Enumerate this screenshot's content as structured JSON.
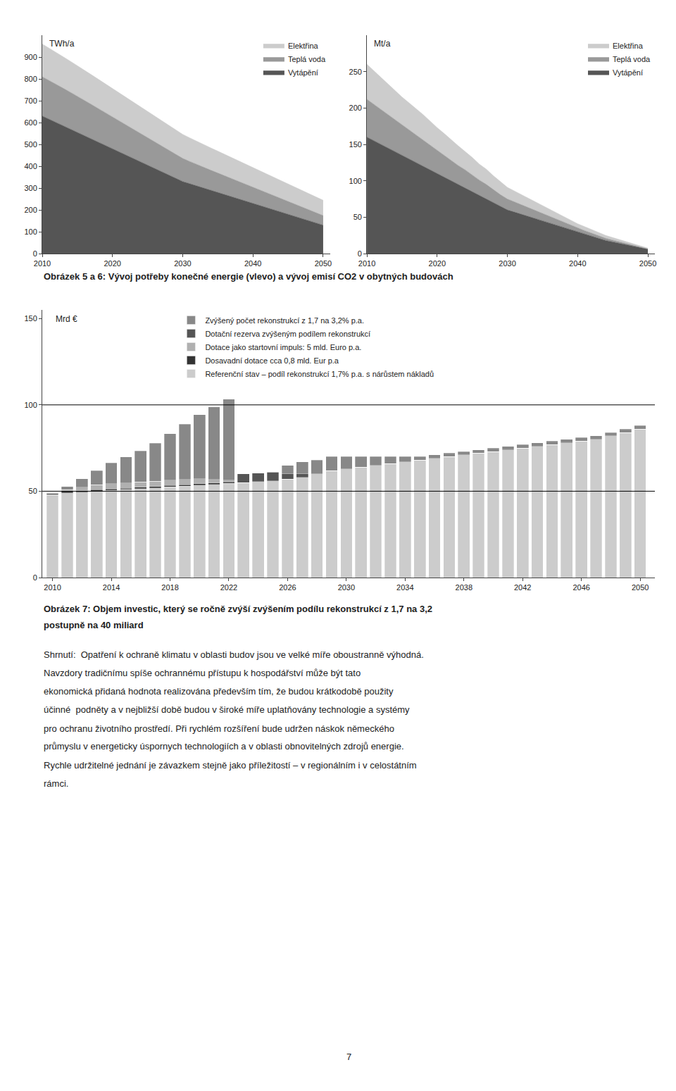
{
  "chart_data": [
    {
      "type": "area",
      "stacked": true,
      "ylabel": "TWh/a",
      "caption": "Obrázek 5 a 6: Vývoj potřeby konečné energie (vlevo) a vývoj emisí CO2 v obytných budovách",
      "x": [
        2010,
        2011,
        2012,
        2013,
        2014,
        2015,
        2016,
        2017,
        2018,
        2019,
        2020,
        2021,
        2022,
        2023,
        2024,
        2025,
        2026,
        2027,
        2028,
        2029,
        2030,
        2031,
        2032,
        2033,
        2034,
        2035,
        2036,
        2037,
        2038,
        2039,
        2040,
        2041,
        2042,
        2043,
        2044,
        2045,
        2046,
        2047,
        2048,
        2049,
        2050
      ],
      "series": [
        {
          "name": "Vytápění",
          "color": "#555555",
          "values": [
            630,
            615,
            600,
            585,
            570,
            555,
            540,
            525,
            510,
            495,
            480,
            465,
            450,
            435,
            420,
            405,
            390,
            375,
            360,
            345,
            330,
            320,
            310,
            300,
            290,
            280,
            270,
            260,
            250,
            240,
            230,
            220,
            210,
            200,
            190,
            180,
            170,
            160,
            150,
            140,
            130
          ]
        },
        {
          "name": "Teplá voda",
          "color": "#999999",
          "values": [
            180,
            178,
            175,
            172,
            169,
            166,
            162,
            158,
            154,
            150,
            146,
            142,
            138,
            134,
            130,
            126,
            122,
            118,
            114,
            110,
            106,
            102,
            98,
            95,
            92,
            89,
            86,
            83,
            80,
            77,
            74,
            71,
            68,
            65,
            62,
            59,
            56,
            53,
            50,
            47,
            44
          ]
        },
        {
          "name": "Elektřina",
          "color": "#cccccc",
          "values": [
            150,
            148,
            146,
            144,
            142,
            140,
            138,
            136,
            134,
            132,
            130,
            128,
            126,
            124,
            122,
            120,
            118,
            116,
            114,
            112,
            110,
            108,
            106,
            104,
            102,
            100,
            98,
            96,
            94,
            92,
            90,
            88,
            86,
            84,
            82,
            80,
            78,
            76,
            74,
            72,
            70
          ]
        }
      ],
      "xlim": [
        2010,
        2051
      ],
      "xticks": [
        2010,
        2020,
        2030,
        2040,
        2050
      ],
      "ylim": [
        0,
        1000
      ],
      "yticks": [
        0,
        100,
        200,
        300,
        400,
        500,
        600,
        700,
        800,
        900
      ],
      "grid": false,
      "legend": "upper right"
    },
    {
      "type": "area",
      "stacked": true,
      "ylabel": "Mt/a",
      "x": [
        2010,
        2011,
        2012,
        2013,
        2014,
        2015,
        2016,
        2017,
        2018,
        2019,
        2020,
        2021,
        2022,
        2023,
        2024,
        2025,
        2026,
        2027,
        2028,
        2029,
        2030,
        2031,
        2032,
        2033,
        2034,
        2035,
        2036,
        2037,
        2038,
        2039,
        2040,
        2041,
        2042,
        2043,
        2044,
        2045,
        2046,
        2047,
        2048,
        2049,
        2050
      ],
      "series": [
        {
          "name": "Vytápění",
          "color": "#555555",
          "values": [
            160,
            155,
            150,
            145,
            140,
            135,
            130,
            125,
            120,
            115,
            110,
            105,
            100,
            95,
            90,
            85,
            80,
            75,
            70,
            65,
            60,
            57,
            54,
            51,
            48,
            45,
            42,
            39,
            36,
            33,
            30,
            27,
            24,
            21,
            18,
            16,
            14,
            12,
            10,
            8,
            6
          ]
        },
        {
          "name": "Teplá voda",
          "color": "#999999",
          "values": [
            52,
            50,
            48,
            46,
            44,
            42,
            40,
            38,
            36,
            34,
            32,
            30,
            28,
            26,
            25,
            23,
            21,
            20,
            18,
            16,
            15,
            14,
            13,
            12,
            11,
            10,
            9,
            8,
            7,
            6,
            5,
            4.5,
            4,
            3.5,
            3,
            2.5,
            2,
            1.5,
            1,
            0.8,
            0.5
          ]
        },
        {
          "name": "Elektřina",
          "color": "#cccccc",
          "values": [
            48,
            46,
            44,
            42,
            40,
            38,
            37,
            36,
            35,
            33,
            31,
            30,
            28,
            27,
            25,
            24,
            22,
            21,
            19,
            18,
            16,
            15,
            14,
            13,
            12,
            11,
            10,
            9,
            8,
            7,
            6,
            5.5,
            5,
            4.5,
            4,
            3.5,
            3,
            2.5,
            2,
            1.5,
            1
          ]
        }
      ],
      "xlim": [
        2010,
        2051
      ],
      "xticks": [
        2010,
        2020,
        2030,
        2040,
        2050
      ],
      "ylim": [
        0,
        300
      ],
      "yticks": [
        0,
        50,
        100,
        150,
        200,
        250
      ],
      "grid": false,
      "legend": "upper right"
    },
    {
      "type": "bar",
      "stacked": true,
      "ylabel": "Mrd €",
      "x": [
        2010,
        2011,
        2012,
        2013,
        2014,
        2015,
        2016,
        2017,
        2018,
        2019,
        2020,
        2021,
        2022,
        2023,
        2024,
        2025,
        2026,
        2027,
        2028,
        2029,
        2030,
        2031,
        2032,
        2033,
        2034,
        2035,
        2036,
        2037,
        2038,
        2039,
        2040,
        2041,
        2042,
        2043,
        2044,
        2045,
        2046,
        2047,
        2048,
        2049,
        2050
      ],
      "series": [
        {
          "name": "Referenční stav – podíl rekonstrukcí 1,7% p.a. s nárůstem nákladů",
          "color": "#cccccc",
          "values": [
            48,
            49,
            49.5,
            50,
            50.5,
            51,
            51.5,
            52,
            52.5,
            53,
            53.5,
            54,
            54.5,
            55,
            55.5,
            56,
            57,
            58,
            60,
            62,
            63,
            64,
            65,
            66,
            67,
            68,
            69,
            70,
            71,
            72,
            73,
            74,
            75,
            76,
            77,
            78,
            79,
            80,
            82,
            84,
            86
          ]
        },
        {
          "name": "Dosavadní dotace cca 0,8 mld. Eur p.a",
          "color": "#333333",
          "values": [
            0.8,
            0.8,
            0.8,
            0.8,
            0.8,
            0.8,
            0.8,
            0.8,
            0.8,
            0.8,
            0.8,
            0.8,
            0.8,
            0,
            0,
            0,
            0,
            0,
            0,
            0,
            0,
            0,
            0,
            0,
            0,
            0,
            0,
            0,
            0,
            0,
            0,
            0,
            0,
            0,
            0,
            0,
            0,
            0,
            0,
            0,
            0
          ]
        },
        {
          "name": "Dotace jako startovní impuls: 5 mld. Euro p.a.",
          "color": "#b0b0b0",
          "values": [
            0,
            1,
            2,
            3,
            3,
            3,
            3,
            3,
            3,
            3,
            3,
            2,
            1,
            0,
            0,
            0,
            0,
            0,
            0,
            0,
            0,
            0,
            0,
            0,
            0,
            0,
            0,
            0,
            0,
            0,
            0,
            0,
            0,
            0,
            0,
            0,
            0,
            0,
            0,
            0,
            0
          ]
        },
        {
          "name": "Dotační rezerva zvýšeným podílem rekonstrukcí",
          "color": "#555555",
          "values": [
            0,
            0,
            0,
            0,
            0,
            0,
            0,
            0,
            0,
            0,
            0,
            0,
            0,
            5,
            5,
            5,
            3,
            2,
            0,
            0,
            0,
            0,
            0,
            0,
            0,
            0,
            0,
            0,
            0,
            0,
            0,
            0,
            0,
            0,
            0,
            0,
            0,
            0,
            0,
            0,
            0
          ]
        },
        {
          "name": "Zvýšený počet rekonstrukcí z 1,7 na 3,2% p.a.",
          "color": "#888888",
          "values": [
            0,
            2,
            5,
            8,
            12,
            15,
            18,
            22,
            27,
            32,
            37,
            42,
            47,
            0,
            0,
            0,
            5,
            7,
            8,
            8,
            7,
            6,
            5,
            4,
            3,
            2,
            2,
            2,
            2,
            2,
            2,
            2,
            2,
            2,
            2,
            2,
            2,
            2,
            2,
            2,
            2
          ]
        }
      ],
      "xlim": [
        2009.3,
        2051
      ],
      "xticks": [
        2010,
        2014,
        2018,
        2022,
        2026,
        2030,
        2034,
        2038,
        2042,
        2046,
        2050
      ],
      "ylim": [
        0,
        155
      ],
      "yticks": [
        0,
        50,
        100,
        150
      ],
      "hlines": [
        100,
        50
      ],
      "grid": false,
      "legend": "upper left",
      "caption": [
        "Obrázek 7: Objem investic, který se ročně zvýší zvýšením podílu rekonstrukcí z 1,7 na 3,2",
        "postupně na 40 miliard"
      ],
      "annotations": [
        "Shrnutí:  Opatření k ochraně klimatu v oblasti budov jsou ve velké míře oboustranně výhodná.",
        "Navzdory tradičnímu spíše ochrannému přístupu k hospodářství může být tato",
        "ekonomická přidaná hodnota realizována především tím, že budou krátkodobě použity",
        "účinné  podněty a v nejbližší době budou v široké míře uplatňovány technologie a systémy",
        "pro ochranu životního prostředí. Při rychlém rozšíření bude udržen náskok německého",
        "průmyslu v energeticky úspornych technologiích a v oblasti obnovitelných zdrojů energie.",
        "Rychle udržitelné jednání je závazkem stejně jako příležitostí – v regionálním i v celostátním",
        "rámci."
      ],
      "page_number": "7"
    }
  ]
}
